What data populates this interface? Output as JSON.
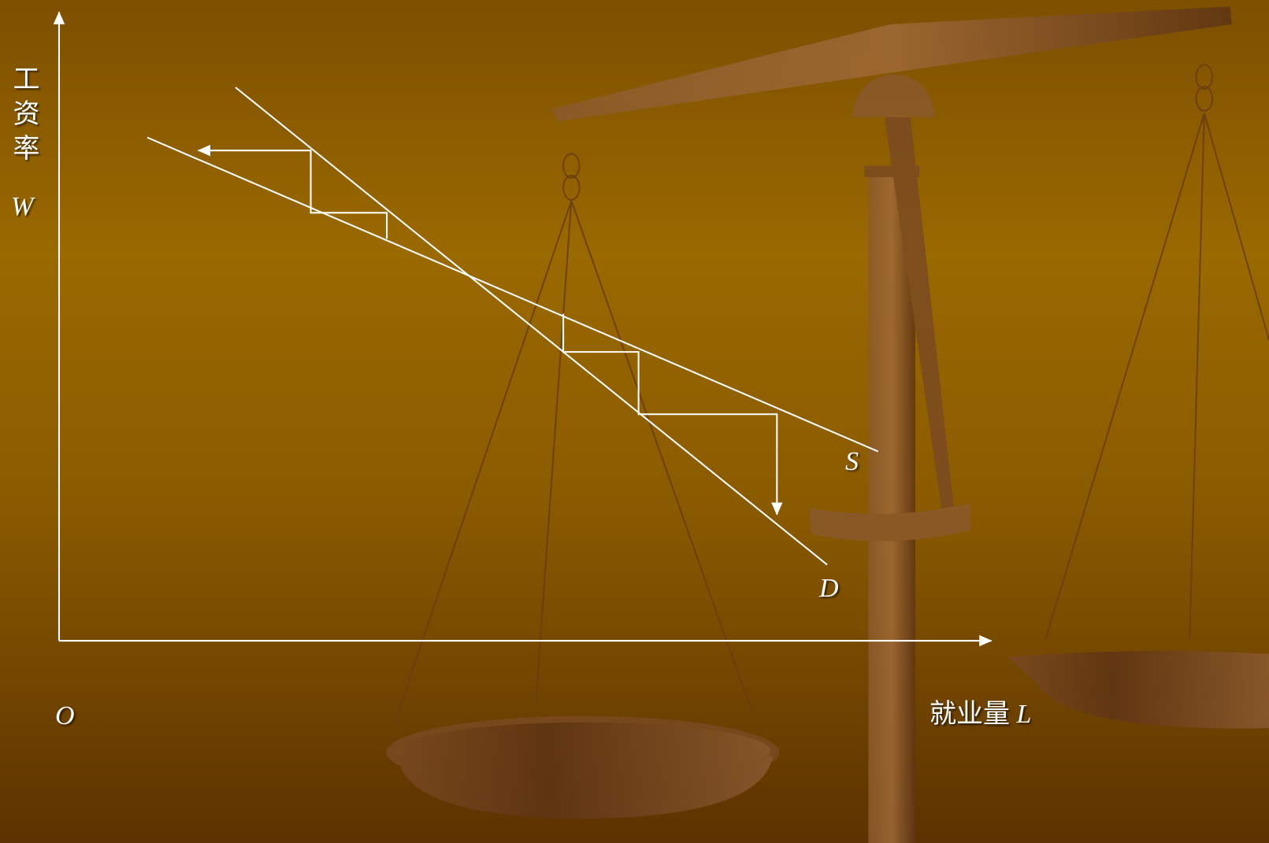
{
  "axis_labels": {
    "y": {
      "text": "工资率",
      "symbol": "W"
    },
    "x": {
      "text": "就业量",
      "symbol": "L"
    },
    "origin": "O"
  },
  "curves": {
    "supply": "S",
    "demand": "D"
  }
}
